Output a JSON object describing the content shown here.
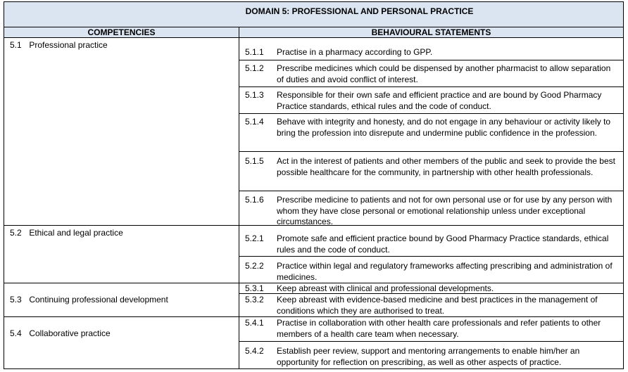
{
  "header": {
    "domain_title": "DOMAIN 5: PROFESSIONAL AND PERSONAL PRACTICE",
    "col_competencies": "COMPETENCIES",
    "col_statements": "BEHAVIOURAL STATEMENTS"
  },
  "competencies": [
    {
      "num": "5.1",
      "label": "Professional practice"
    },
    {
      "num": "5.2",
      "label": "Ethical and legal practice"
    },
    {
      "num": "5.3",
      "label": "Continuing professional development"
    },
    {
      "num": "5.4",
      "label": "Collaborative practice"
    }
  ],
  "statements": [
    {
      "num": "5.1.1",
      "text": "Practise in a pharmacy according to GPP."
    },
    {
      "num": "5.1.2",
      "text": "Prescribe medicines which could be dispensed by another pharmacist to allow separation of duties and avoid conflict of interest."
    },
    {
      "num": "5.1.3",
      "text": "Responsible for their own safe and efficient practice and are bound by Good Pharmacy Practice standards, ethical rules and the code of conduct."
    },
    {
      "num": "5.1.4",
      "text": "Behave with integrity and honesty, and do not engage in any behaviour or activity likely to bring the profession into disrepute and undermine public confidence in the profession."
    },
    {
      "num": "5.1.5",
      "text": "Act in the interest of patients and other members of the public and seek to provide the best possible healthcare for the community, in partnership with other health professionals."
    },
    {
      "num": "5.1.6",
      "text": "Prescribe medicine to patients and not for own personal use or for use by any person with whom they have close personal or emotional relationship unless under exceptional circumstances."
    },
    {
      "num": "5.2.1",
      "text": "Promote safe and efficient practice bound by Good Pharmacy Practice standards, ethical rules and the code of conduct."
    },
    {
      "num": "5.2.2",
      "text": "Practice within legal and regulatory frameworks affecting prescribing and administration of medicines."
    },
    {
      "num": "5.3.1",
      "text": "Keep abreast with clinical and professional developments."
    },
    {
      "num": "5.3.2",
      "text": "Keep abreast with evidence-based medicine and best practices in the management of conditions which they are authorised to treat."
    },
    {
      "num": "5.4.1",
      "text": "Practise in collaboration with other health care professionals and refer patients to other members of a health care team when necessary."
    },
    {
      "num": "5.4.2",
      "text": "Establish peer review, support and mentoring arrangements to enable him/her an opportunity for reflection on prescribing, as well as other aspects of practice."
    }
  ]
}
